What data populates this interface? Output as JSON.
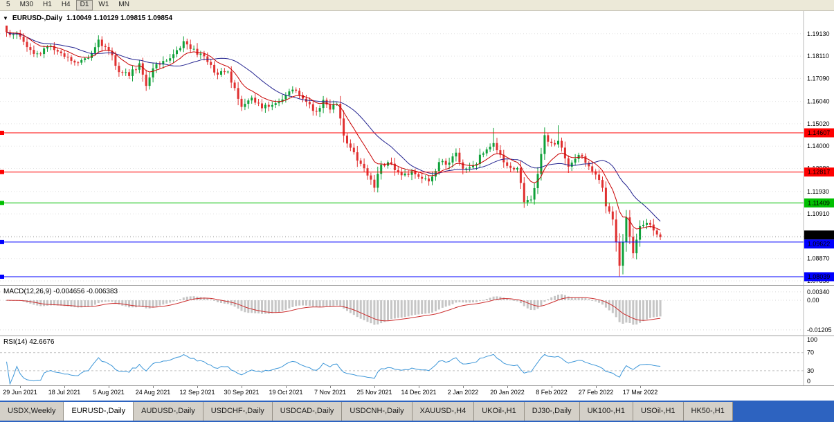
{
  "colors": {
    "bull": "#0fa13a",
    "bear": "#e03030",
    "ma_fast": "#c80000",
    "ma_slow": "#22228f",
    "macd_hist": "#c6c6c6",
    "macd_signal": "#cc2e2e",
    "rsi_line": "#3c96d8",
    "level_red": "#ff0000",
    "level_green": "#00c000",
    "level_blue": "#0000ff",
    "current_tag": "#000000"
  },
  "toolbar": {
    "timeframes": [
      {
        "label": "5",
        "active": false
      },
      {
        "label": "M30",
        "active": false
      },
      {
        "label": "H1",
        "active": false
      },
      {
        "label": "H4",
        "active": false
      },
      {
        "label": "D1",
        "active": true
      },
      {
        "label": "W1",
        "active": false
      },
      {
        "label": "MN",
        "active": false
      }
    ]
  },
  "chart": {
    "title": {
      "arrow_icon": "▼",
      "symbol": "EURUSD-,Daily",
      "ohlc": "1.10049 1.10129 1.09815 1.09854"
    },
    "price_axis_labels": [
      "1.19130",
      "1.18110",
      "1.17090",
      "1.16040",
      "1.15020",
      "1.14000",
      "1.12980",
      "1.11930",
      "1.10910",
      "1.09890",
      "1.08870",
      "1.07850"
    ],
    "date_axis_labels": [
      "29 Jun 2021",
      "18 Jul 2021",
      "5 Aug 2021",
      "24 Aug 2021",
      "12 Sep 2021",
      "30 Sep 2021",
      "19 Oct 2021",
      "7 Nov 2021",
      "25 Nov 2021",
      "14 Dec 2021",
      "2 Jan 2022",
      "20 Jan 2022",
      "8 Feb 2022",
      "27 Feb 2022",
      "17 Mar 2022"
    ],
    "current_price_tag": "1.09854",
    "macd_label": "MACD(12,26,9) -0.004656 -0.006383",
    "macd_axis_labels": [
      "0.00340",
      "0.00",
      "-0.01205"
    ],
    "rsi_label": "RSI(14) 42.6676",
    "rsi_axis_labels": [
      "100",
      "70",
      "30",
      "0"
    ]
  },
  "chart_data": {
    "type": "candlestick",
    "symbol": "EURUSD-",
    "timeframe": "Daily",
    "current_bar": {
      "open": 1.10049,
      "high": 1.10129,
      "low": 1.09815,
      "close": 1.09854
    },
    "current_price": 1.09854,
    "price_range_visible": [
      1.0772,
      1.2016
    ],
    "horizontal_levels": [
      {
        "price": 1.14607,
        "color_key": "level_red"
      },
      {
        "price": 1.12817,
        "color_key": "level_red"
      },
      {
        "price": 1.11409,
        "color_key": "level_green"
      },
      {
        "price": 1.09622,
        "color_key": "level_blue"
      },
      {
        "price": 1.08039,
        "color_key": "level_blue"
      }
    ],
    "n_candles": 193,
    "date_label_indices": [
      4,
      17,
      30,
      43,
      56,
      69,
      82,
      95,
      108,
      121,
      134,
      147,
      160,
      173,
      186
    ],
    "close_keypoints": [
      [
        0,
        1.192
      ],
      [
        4,
        1.19
      ],
      [
        6,
        1.1852
      ],
      [
        9,
        1.1823
      ],
      [
        13,
        1.1858
      ],
      [
        17,
        1.1808
      ],
      [
        20,
        1.1782
      ],
      [
        24,
        1.1802
      ],
      [
        27,
        1.1886
      ],
      [
        30,
        1.1835
      ],
      [
        33,
        1.1738
      ],
      [
        36,
        1.172
      ],
      [
        39,
        1.1778
      ],
      [
        41,
        1.1675
      ],
      [
        43,
        1.1755
      ],
      [
        47,
        1.179
      ],
      [
        50,
        1.1838
      ],
      [
        52,
        1.1879
      ],
      [
        56,
        1.1817
      ],
      [
        58,
        1.181
      ],
      [
        62,
        1.1726
      ],
      [
        65,
        1.174
      ],
      [
        69,
        1.1579
      ],
      [
        72,
        1.1621
      ],
      [
        75,
        1.1573
      ],
      [
        79,
        1.1596
      ],
      [
        82,
        1.1633
      ],
      [
        85,
        1.1653
      ],
      [
        88,
        1.1602
      ],
      [
        91,
        1.1557
      ],
      [
        93,
        1.1611
      ],
      [
        95,
        1.1567
      ],
      [
        97,
        1.1593
      ],
      [
        99,
        1.1448
      ],
      [
        102,
        1.1372
      ],
      [
        104,
        1.1319
      ],
      [
        107,
        1.1247
      ],
      [
        108,
        1.121
      ],
      [
        110,
        1.1315
      ],
      [
        113,
        1.132
      ],
      [
        116,
        1.1267
      ],
      [
        119,
        1.1286
      ],
      [
        121,
        1.126
      ],
      [
        124,
        1.1239
      ],
      [
        127,
        1.1327
      ],
      [
        130,
        1.1325
      ],
      [
        132,
        1.137
      ],
      [
        134,
        1.1297
      ],
      [
        137,
        1.1312
      ],
      [
        140,
        1.1367
      ],
      [
        143,
        1.1414
      ],
      [
        147,
        1.131
      ],
      [
        150,
        1.13
      ],
      [
        152,
        1.1144
      ],
      [
        154,
        1.1156
      ],
      [
        156,
        1.1273
      ],
      [
        158,
        1.145
      ],
      [
        160,
        1.1414
      ],
      [
        162,
        1.1424
      ],
      [
        165,
        1.1306
      ],
      [
        168,
        1.136
      ],
      [
        170,
        1.1324
      ],
      [
        173,
        1.127
      ],
      [
        175,
        1.121
      ],
      [
        176,
        1.1125
      ],
      [
        178,
        1.1065
      ],
      [
        180,
        1.0854
      ],
      [
        182,
        1.1075
      ],
      [
        184,
        1.0911
      ],
      [
        186,
        1.1035
      ],
      [
        188,
        1.105
      ],
      [
        190,
        1.1015
      ],
      [
        191,
        1.0997
      ],
      [
        192,
        1.09854
      ]
    ],
    "spikes": {
      "0": {
        "high": 1.194
      },
      "143": {
        "high": 1.1483
      },
      "162": {
        "high": 1.1495
      },
      "180": {
        "low": 1.0806
      }
    },
    "indicators": {
      "ma_fast_period": 10,
      "ma_slow_period": 21,
      "macd": {
        "fast": 12,
        "slow": 26,
        "signal": 9,
        "current_main": -0.004656,
        "current_signal": -0.006383,
        "axis_max": 0.0034,
        "axis_min": -0.01205
      },
      "rsi": {
        "period": 14,
        "current": 42.6676,
        "levels": [
          70,
          30
        ]
      }
    }
  },
  "tabs": [
    {
      "label": "USDX,Weekly",
      "active": false
    },
    {
      "label": "EURUSD-,Daily",
      "active": true
    },
    {
      "label": "AUDUSD-,Daily",
      "active": false
    },
    {
      "label": "USDCHF-,Daily",
      "active": false
    },
    {
      "label": "USDCAD-,Daily",
      "active": false
    },
    {
      "label": "USDCNH-,Daily",
      "active": false
    },
    {
      "label": "XAUUSD-,H4",
      "active": false
    },
    {
      "label": "UKOil-,H1",
      "active": false
    },
    {
      "label": "DJ30-,Daily",
      "active": false
    },
    {
      "label": "UK100-,H1",
      "active": false
    },
    {
      "label": "USOil-,H1",
      "active": false
    },
    {
      "label": "HK50-,H1",
      "active": false
    }
  ]
}
